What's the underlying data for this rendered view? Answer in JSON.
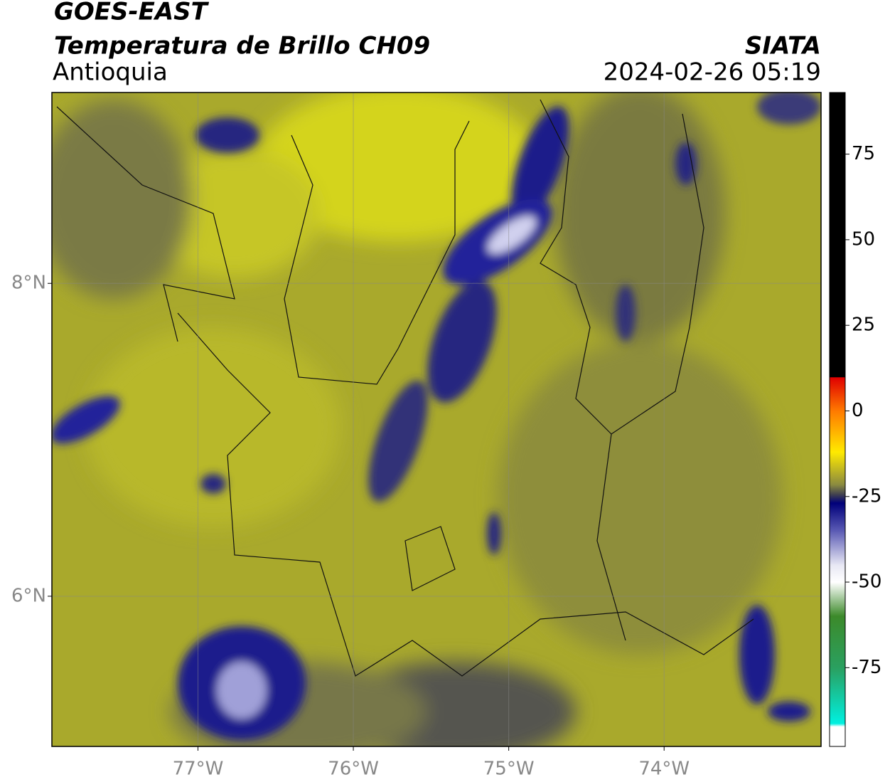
{
  "header": {
    "title": "GOES-EAST",
    "subtitle": "Temperatura de Brillo CH09",
    "source": "SIATA",
    "region": "Antioquia",
    "datetime": "2024-02-26 05:19"
  },
  "map": {
    "xlim": [
      -77.94,
      -72.99
    ],
    "ylim": [
      5.04,
      9.22
    ],
    "xticks": [
      {
        "value": -77,
        "label": "77°W"
      },
      {
        "value": -76,
        "label": "76°W"
      },
      {
        "value": -75,
        "label": "75°W"
      },
      {
        "value": -74,
        "label": "74°W"
      }
    ],
    "yticks": [
      {
        "value": 8,
        "label": "8°N"
      },
      {
        "value": 6,
        "label": "6°N"
      }
    ],
    "grid": true
  },
  "colorbar": {
    "lim": [
      -98,
      93
    ],
    "ticks": [
      75,
      50,
      25,
      0,
      -25,
      -50,
      -75
    ]
  }
}
